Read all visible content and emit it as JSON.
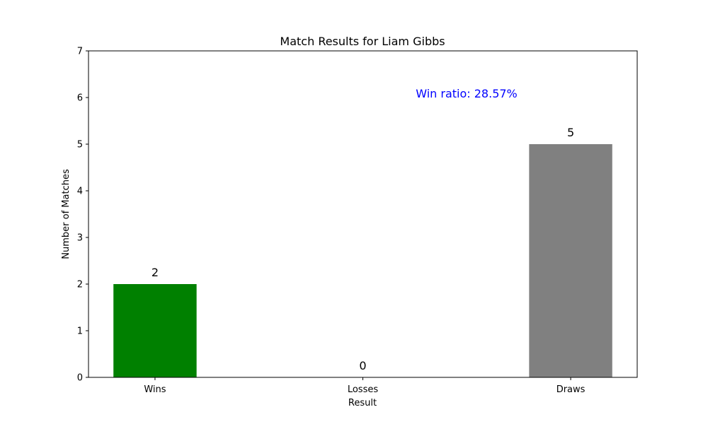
{
  "chart_data": {
    "type": "bar",
    "title": "Match Results for Liam Gibbs",
    "xlabel": "Result",
    "ylabel": "Number of Matches",
    "categories": [
      "Wins",
      "Losses",
      "Draws"
    ],
    "values": [
      2,
      0,
      5
    ],
    "value_labels": [
      "2",
      "0",
      "5"
    ],
    "colors": [
      "#008000",
      "#ff0000",
      "#808080"
    ],
    "ylim": [
      0,
      7
    ],
    "yticks": [
      "0",
      "1",
      "2",
      "3",
      "4",
      "5",
      "6",
      "7"
    ],
    "grid": false,
    "annotation": {
      "text": "Win ratio: 28.57%",
      "color": "#0000ff"
    }
  }
}
